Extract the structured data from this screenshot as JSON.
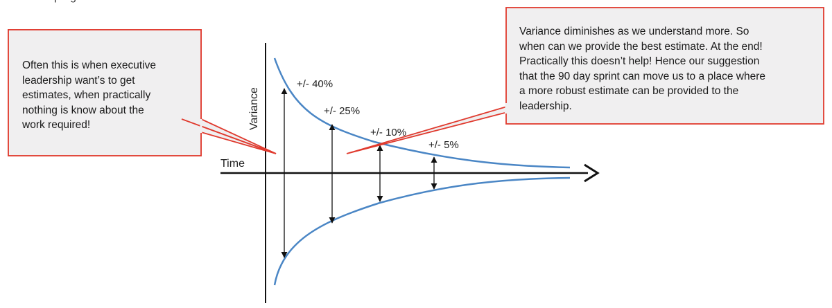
{
  "diagram": {
    "axis_labels": {
      "y": "Variance",
      "x": "Time"
    },
    "variance_labels": [
      {
        "id": "40",
        "text": "+/- 40%"
      },
      {
        "id": "25",
        "text": "+/- 25%"
      },
      {
        "id": "10",
        "text": "+/- 10%"
      },
      {
        "id": "5",
        "text": "+/- 5%"
      }
    ],
    "colors": {
      "curve": "#4a86c5",
      "callout_border": "#e03a2e",
      "callout_fill": "#f0eff0",
      "axis": "#111111"
    }
  },
  "callouts": {
    "left": {
      "text": "Often this is when executive\nleadership want’s to get\nestimates,  when practically\nnothing is know about the\nwork required!"
    },
    "right": {
      "text": "Variance diminishes as we understand more.  So\nwhen can we provide the best estimate.  At the end!\nPractically this doesn’t help!  Hence our suggestion\nthat the 90 day sprint can move us to a place where\na more robust estimate can be provided to the\nleadership."
    }
  }
}
